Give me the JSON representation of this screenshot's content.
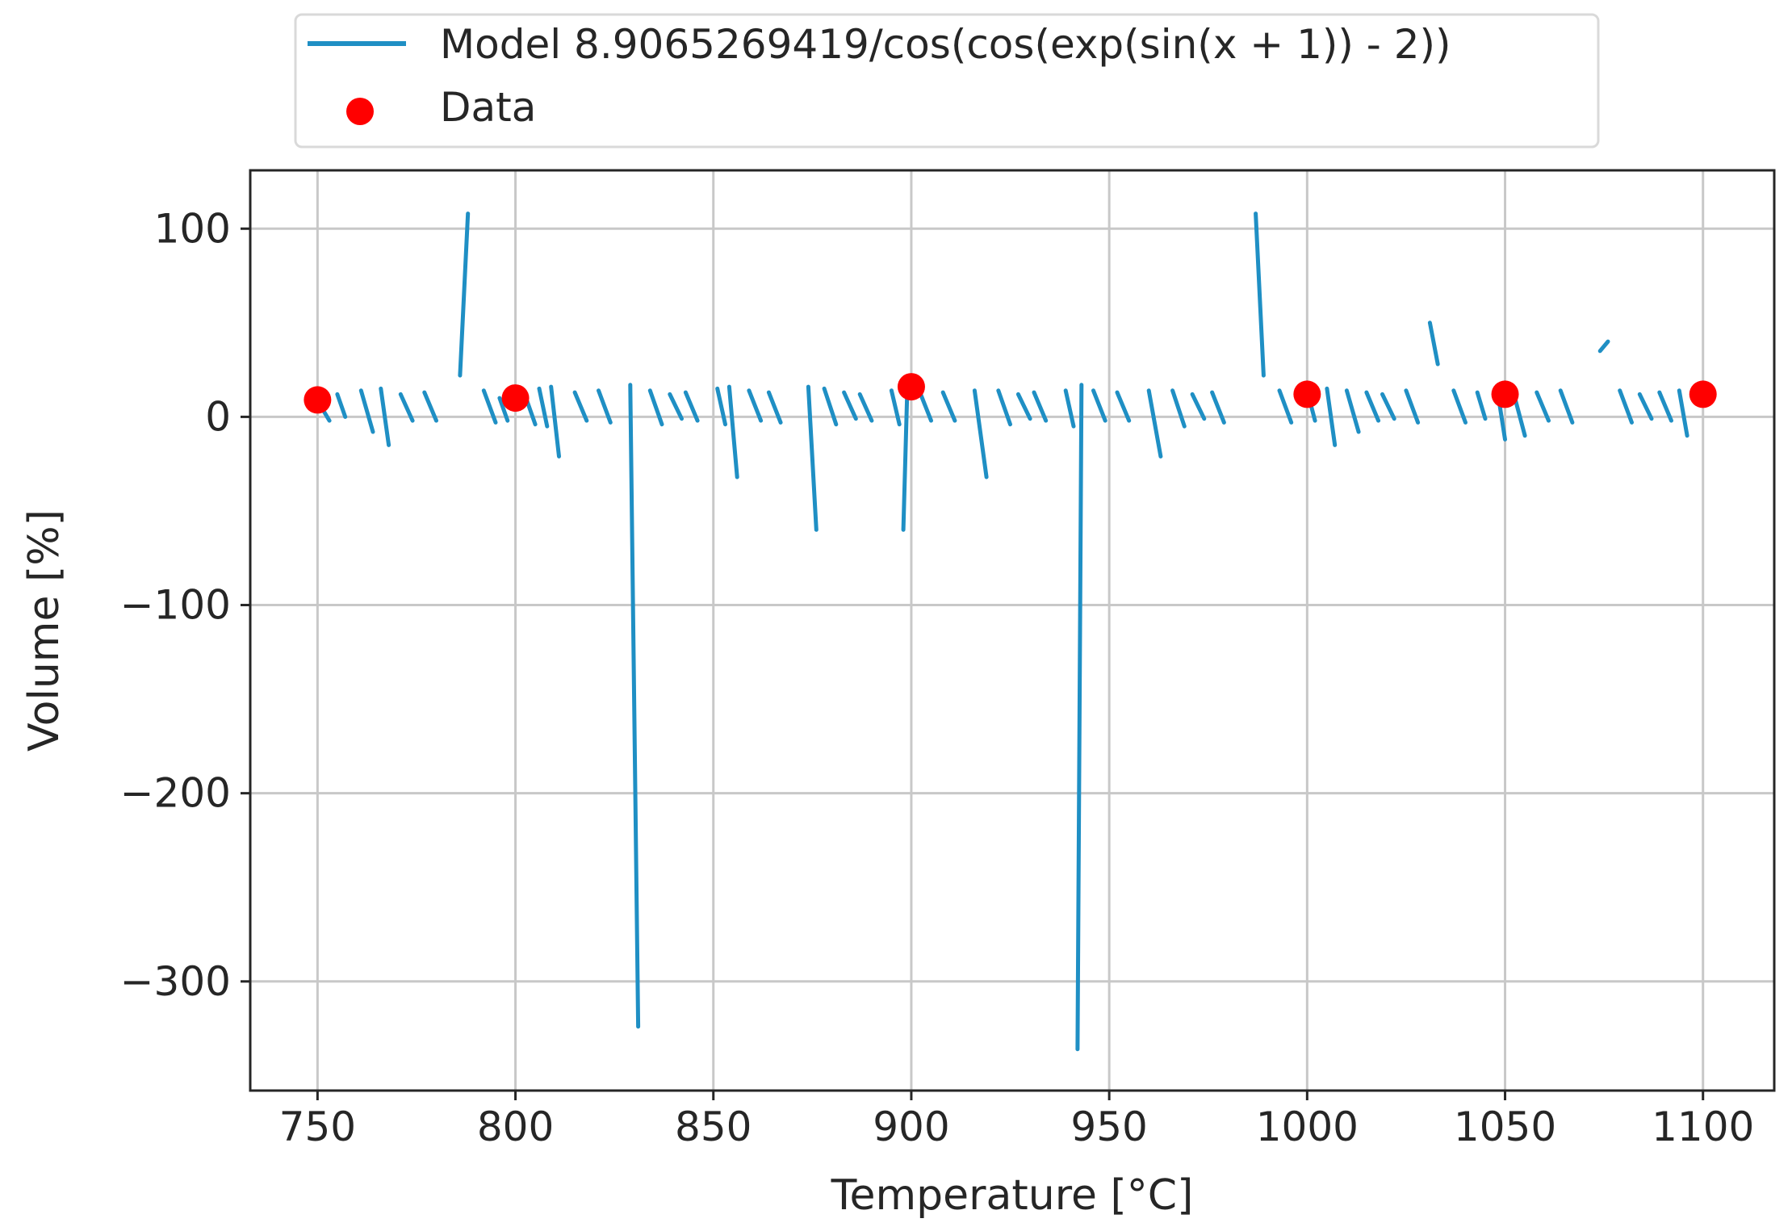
{
  "chart_data": {
    "type": "line",
    "title": "",
    "xlabel": "Temperature [°C]",
    "ylabel": "Volume [%]",
    "xlim": [
      733,
      1118
    ],
    "ylim": [
      -358,
      131
    ],
    "xticks": [
      750,
      800,
      850,
      900,
      950,
      1000,
      1050,
      1100
    ],
    "xtick_labels": [
      "750",
      "800",
      "850",
      "900",
      "950",
      "1000",
      "1050",
      "1100"
    ],
    "yticks": [
      100,
      0,
      -100,
      -200,
      -300
    ],
    "ytick_labels": [
      "100",
      "0",
      "−100",
      "−200",
      "−300"
    ],
    "grid": true,
    "legend_position": "above plot",
    "colors": {
      "model": "#1f8fc4",
      "data": "#ff0000"
    },
    "series": [
      {
        "name": "Model 8.9065269419/cos(cos(exp(sin(x + 1)) - 2))",
        "kind": "line",
        "segments": [
          [
            [
              751,
              5
            ],
            [
              753,
              -2
            ]
          ],
          [
            [
              755,
              12
            ],
            [
              757,
              0
            ]
          ],
          [
            [
              761,
              14
            ],
            [
              764,
              -8
            ]
          ],
          [
            [
              766,
              15
            ],
            [
              768,
              -15
            ]
          ],
          [
            [
              771,
              12
            ],
            [
              774,
              -2
            ]
          ],
          [
            [
              777,
              13
            ],
            [
              780,
              -2
            ]
          ],
          [
            [
              786,
              22
            ],
            [
              788,
              108
            ]
          ],
          [
            [
              792,
              14
            ],
            [
              795,
              -3
            ]
          ],
          [
            [
              796,
              10
            ],
            [
              798,
              -2
            ]
          ],
          [
            [
              802,
              14
            ],
            [
              805,
              -4
            ]
          ],
          [
            [
              806,
              15
            ],
            [
              808,
              -5
            ]
          ],
          [
            [
              809,
              16
            ],
            [
              811,
              -21
            ]
          ],
          [
            [
              815,
              13
            ],
            [
              818,
              -2
            ]
          ],
          [
            [
              821,
              14
            ],
            [
              824,
              -3
            ]
          ],
          [
            [
              829,
              17
            ],
            [
              831,
              -324
            ]
          ],
          [
            [
              834,
              14
            ],
            [
              837,
              -4
            ]
          ],
          [
            [
              839,
              12
            ],
            [
              842,
              -1
            ]
          ],
          [
            [
              843,
              13
            ],
            [
              846,
              -2
            ]
          ],
          [
            [
              851,
              15
            ],
            [
              853,
              -4
            ]
          ],
          [
            [
              854,
              16
            ],
            [
              856,
              -32
            ]
          ],
          [
            [
              859,
              14
            ],
            [
              862,
              -2
            ]
          ],
          [
            [
              864,
              13
            ],
            [
              867,
              -3
            ]
          ],
          [
            [
              874,
              16
            ],
            [
              876,
              -60
            ]
          ],
          [
            [
              878,
              15
            ],
            [
              881,
              -4
            ]
          ],
          [
            [
              883,
              13
            ],
            [
              886,
              -1
            ]
          ],
          [
            [
              887,
              12
            ],
            [
              890,
              -2
            ]
          ],
          [
            [
              895,
              14
            ],
            [
              897,
              -4
            ]
          ],
          [
            [
              899,
              15
            ],
            [
              898,
              -60
            ]
          ],
          [
            [
              902,
              14
            ],
            [
              905,
              -2
            ]
          ],
          [
            [
              908,
              13
            ],
            [
              911,
              -2
            ]
          ],
          [
            [
              916,
              14
            ],
            [
              919,
              -32
            ]
          ],
          [
            [
              922,
              14
            ],
            [
              925,
              -4
            ]
          ],
          [
            [
              927,
              12
            ],
            [
              930,
              -1
            ]
          ],
          [
            [
              931,
              13
            ],
            [
              934,
              -2
            ]
          ],
          [
            [
              939,
              14
            ],
            [
              941,
              -5
            ]
          ],
          [
            [
              943,
              17
            ],
            [
              942,
              -336
            ]
          ],
          [
            [
              946,
              14
            ],
            [
              949,
              -2
            ]
          ],
          [
            [
              952,
              13
            ],
            [
              955,
              -2
            ]
          ],
          [
            [
              960,
              14
            ],
            [
              963,
              -21
            ]
          ],
          [
            [
              966,
              14
            ],
            [
              969,
              -5
            ]
          ],
          [
            [
              971,
              12
            ],
            [
              974,
              -1
            ]
          ],
          [
            [
              976,
              13
            ],
            [
              979,
              -3
            ]
          ],
          [
            [
              987,
              108
            ],
            [
              989,
              22
            ]
          ],
          [
            [
              993,
              14
            ],
            [
              996,
              -3
            ]
          ],
          [
            [
              1000,
              14
            ],
            [
              1002,
              -2
            ]
          ],
          [
            [
              1005,
              15
            ],
            [
              1007,
              -15
            ]
          ],
          [
            [
              1010,
              14
            ],
            [
              1013,
              -8
            ]
          ],
          [
            [
              1015,
              13
            ],
            [
              1018,
              -2
            ]
          ],
          [
            [
              1019,
              12
            ],
            [
              1022,
              -1
            ]
          ],
          [
            [
              1025,
              14
            ],
            [
              1028,
              -3
            ]
          ],
          [
            [
              1031,
              50
            ],
            [
              1033,
              28
            ]
          ],
          [
            [
              1037,
              14
            ],
            [
              1040,
              -3
            ]
          ],
          [
            [
              1043,
              13
            ],
            [
              1045,
              -1
            ]
          ],
          [
            [
              1048,
              15
            ],
            [
              1050,
              -12
            ]
          ],
          [
            [
              1052,
              14
            ],
            [
              1055,
              -10
            ]
          ],
          [
            [
              1058,
              13
            ],
            [
              1061,
              -2
            ]
          ],
          [
            [
              1064,
              14
            ],
            [
              1067,
              -3
            ]
          ],
          [
            [
              1074,
              35
            ],
            [
              1076,
              40
            ]
          ],
          [
            [
              1079,
              14
            ],
            [
              1082,
              -3
            ]
          ],
          [
            [
              1084,
              12
            ],
            [
              1087,
              -1
            ]
          ],
          [
            [
              1089,
              13
            ],
            [
              1092,
              -2
            ]
          ],
          [
            [
              1094,
              14
            ],
            [
              1096,
              -10
            ]
          ]
        ]
      },
      {
        "name": "Data",
        "kind": "scatter",
        "x": [
          750,
          800,
          900,
          1000,
          1050,
          1100
        ],
        "y": [
          9,
          10,
          16,
          12,
          12,
          12
        ]
      }
    ]
  }
}
